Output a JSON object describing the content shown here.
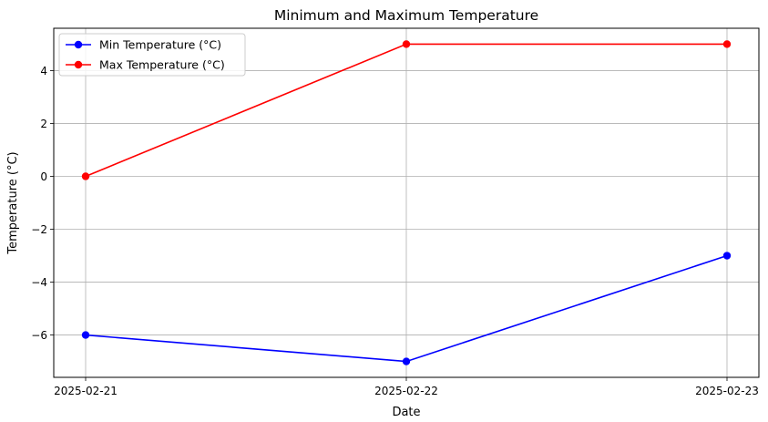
{
  "chart_data": {
    "type": "line",
    "title": "Minimum and Maximum Temperature",
    "xlabel": "Date",
    "ylabel": "Temperature (°C)",
    "categories": [
      "2025-02-21",
      "2025-02-22",
      "2025-02-23"
    ],
    "series": [
      {
        "name": "Min Temperature (°C)",
        "values": [
          -6,
          -7,
          -3
        ],
        "color": "#0000ff"
      },
      {
        "name": "Max Temperature (°C)",
        "values": [
          0,
          5,
          5
        ],
        "color": "#ff0000"
      }
    ],
    "yticks": [
      -6,
      -4,
      -2,
      0,
      2,
      4
    ],
    "ytick_labels": [
      "−6",
      "−4",
      "−2",
      "0",
      "2",
      "4"
    ],
    "ylim": [
      -7.6,
      5.6
    ],
    "grid": true,
    "legend_position": "top-left",
    "colors": {
      "grid": "#b0b0b0",
      "axis": "#000000"
    }
  }
}
